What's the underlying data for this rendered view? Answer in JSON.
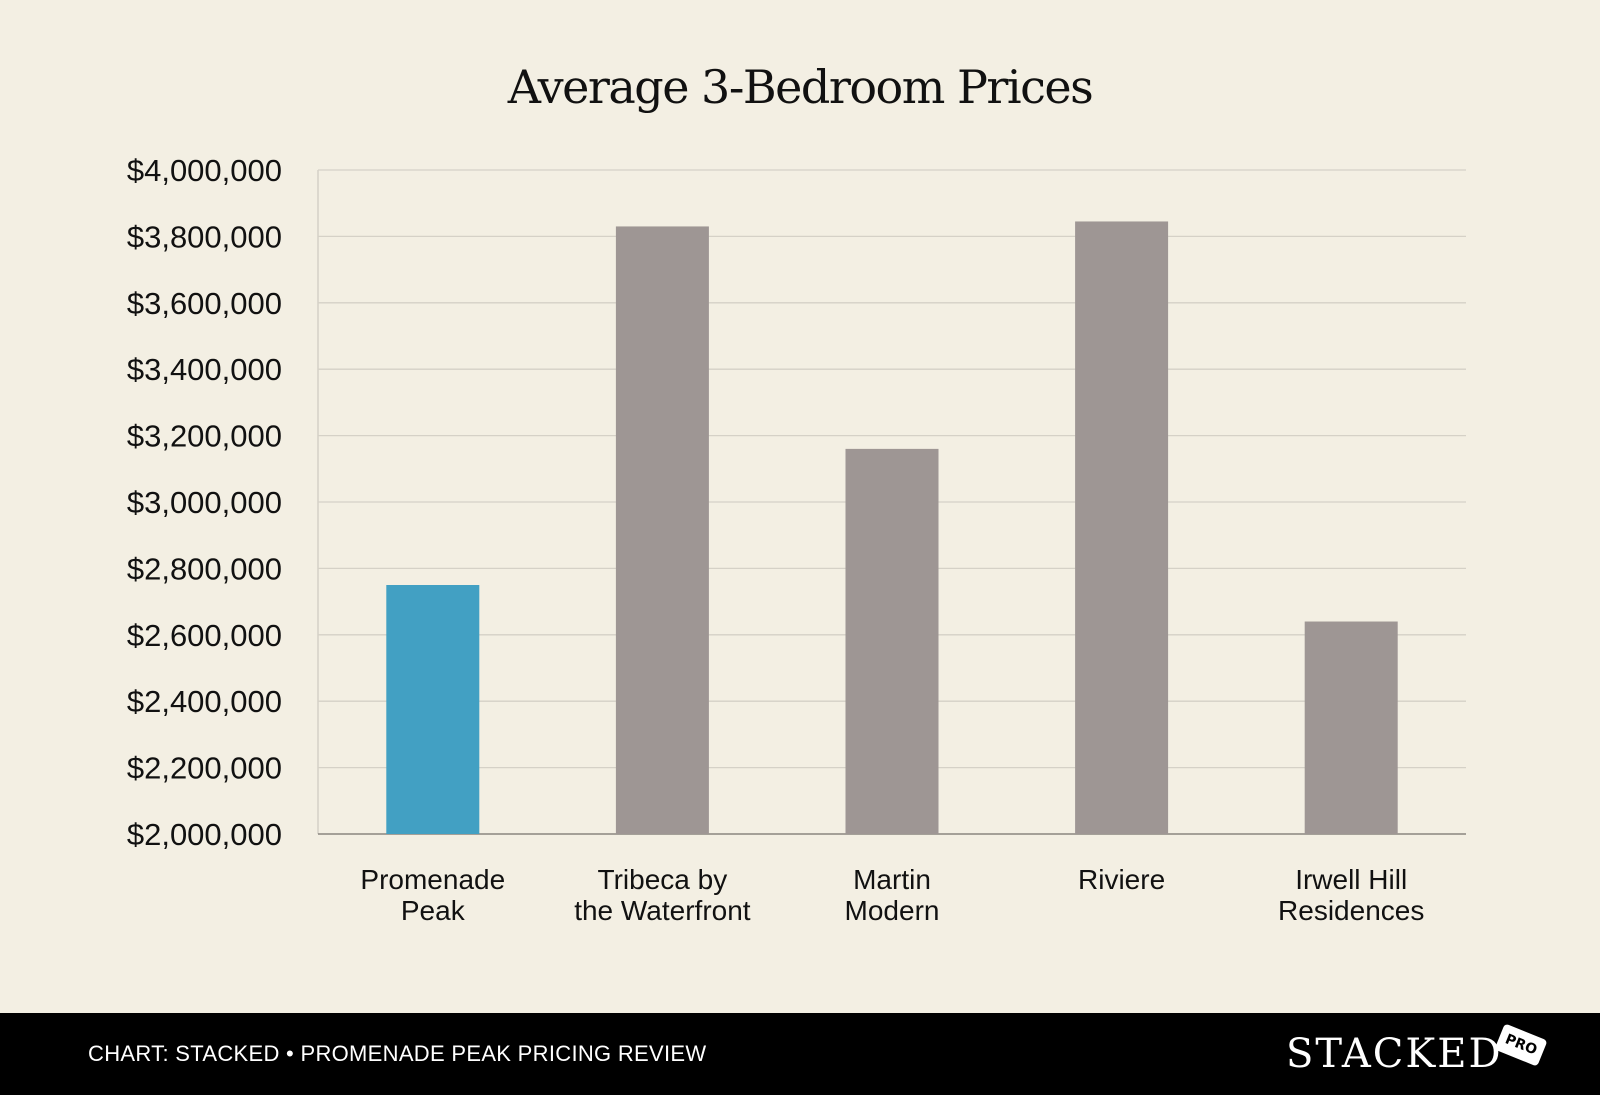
{
  "chart_data": {
    "type": "bar",
    "title": "Average 3-Bedroom Prices",
    "xlabel": "",
    "ylabel": "",
    "categories": [
      [
        "Promenade",
        "Peak"
      ],
      [
        "Tribeca by",
        "the Waterfront"
      ],
      [
        "Martin",
        "Modern"
      ],
      [
        "Riviere"
      ],
      [
        "Irwell Hill",
        "Residences"
      ]
    ],
    "values": [
      2750000,
      3830000,
      3160000,
      3845000,
      2640000
    ],
    "highlight_index": 0,
    "colors": {
      "highlight": "#42a0c3",
      "default": "#9e9694",
      "grid": "#d5d1c7",
      "axis": "#8a8680"
    },
    "ylim": [
      2000000,
      4000000
    ],
    "yticks": [
      2000000,
      2200000,
      2400000,
      2600000,
      2800000,
      3000000,
      3200000,
      3400000,
      3600000,
      3800000,
      4000000
    ],
    "ytick_labels": [
      "$2,000,000",
      "$2,200,000",
      "$2,400,000",
      "$2,600,000",
      "$2,800,000",
      "$3,000,000",
      "$3,200,000",
      "$3,400,000",
      "$3,600,000",
      "$3,800,000",
      "$4,000,000"
    ],
    "grid": true,
    "legend": "none"
  },
  "footer": {
    "caption": "CHART: STACKED • PROMENADE PEAK PRICING REVIEW",
    "brand": "STACKED",
    "brand_tag": "PRO"
  },
  "colors": {
    "background": "#f3efe3",
    "footer_background": "#000000",
    "footer_text": "#ffffff"
  }
}
